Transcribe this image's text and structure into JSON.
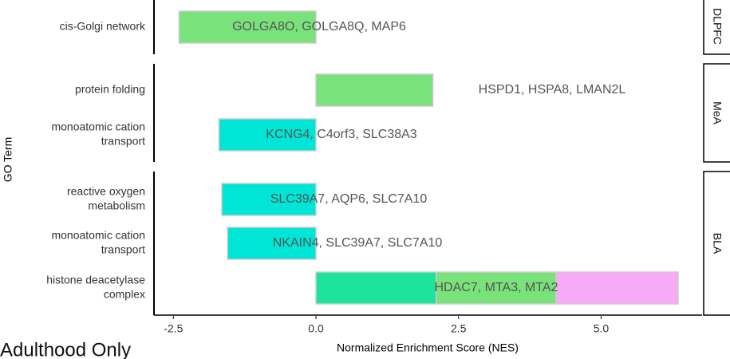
{
  "chart_data": {
    "type": "bar",
    "orientation": "horizontal",
    "stacked": true,
    "title": "Adulthood Only",
    "xlabel": "Normalized Enrichment Score (NES)",
    "ylabel": "GO Term",
    "xlim": [
      -2.84,
      6.77
    ],
    "xticks": [
      -2.5,
      {
        "value": 0,
        "label": "0.0"
      },
      2.5,
      {
        "value": 5,
        "label": "5.0"
      }
    ],
    "panels": [
      {
        "name": "DLPFC",
        "rows": [
          {
            "label": [
              "cis-Golgi network"
            ],
            "genes": "GOLGA8O, GOLGA8Q, MAP6",
            "values": [
              -2.4
            ],
            "colors": [
              "#7ae27b"
            ]
          }
        ]
      },
      {
        "name": "MeA",
        "rows": [
          {
            "label": [
              "protein folding"
            ],
            "genes": "HSPD1, HSPA8, LMAN2L",
            "values": [
              2.05
            ],
            "colors": [
              "#7ae27b"
            ]
          },
          {
            "label": [
              "monoatomic cation",
              "transport"
            ],
            "genes": "KCNG4, C4orf3, SLC38A3",
            "values": [
              -1.7
            ],
            "colors": [
              "#00e6d6"
            ]
          }
        ]
      },
      {
        "name": "BLA",
        "rows": [
          {
            "label": [
              "reactive oxygen",
              "metabolism"
            ],
            "genes": "SLC39A7, AQP6, SLC7A10",
            "values": [
              -1.65
            ],
            "colors": [
              "#00e6d6"
            ]
          },
          {
            "label": [
              "monoatomic cation",
              "transport"
            ],
            "genes": "NKAIN4, SLC39A7, SLC7A10",
            "values": [
              -1.55
            ],
            "colors": [
              "#00e6d6"
            ]
          },
          {
            "label": [
              "histone deacetylase",
              "complex"
            ],
            "genes": "HDAC7, MTA3, MTA2",
            "values": [
              2.11,
              2.1,
              2.14
            ],
            "colors": [
              "#1ee39c",
              "#7ae27b",
              "#f9aaf6"
            ]
          }
        ]
      }
    ]
  }
}
